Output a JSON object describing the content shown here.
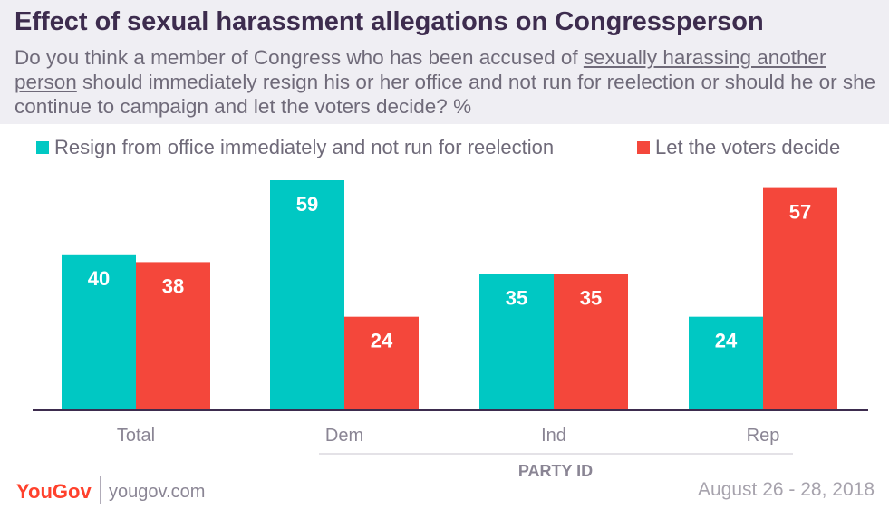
{
  "header": {
    "title": "Effect of sexual harassment allegations on Congressperson",
    "subtitle_pre": "Do you think a member of Congress who has been accused of ",
    "subtitle_underline": "sexually harassing another person",
    "subtitle_post": " should immediately resign his or her office and not run for reelection or should he or she continue to campaign and let the voters decide? %"
  },
  "colors": {
    "resign": "#00c8c3",
    "voters": "#f4473b",
    "axis": "#3d2c4e",
    "label_text": "#ffffff",
    "category_text": "#8a8594"
  },
  "chart_data": {
    "type": "bar",
    "categories": [
      "Total",
      "Dem",
      "Ind",
      "Rep"
    ],
    "series": [
      {
        "name": "Resign from office immediately and not run for reelection",
        "values": [
          40,
          59,
          35,
          24
        ]
      },
      {
        "name": "Let the voters decide",
        "values": [
          38,
          24,
          35,
          57
        ]
      }
    ],
    "group_label": "PARTY ID",
    "ylim": [
      0,
      60
    ],
    "legend_position": "top",
    "grid": false
  },
  "footer": {
    "logo": "YouGov",
    "site": "yougov.com",
    "date": "August 26 - 28, 2018"
  }
}
